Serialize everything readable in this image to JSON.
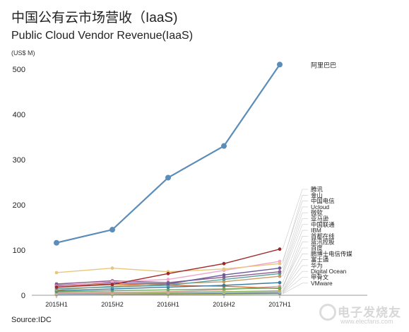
{
  "header": {
    "title_cn": "中国公有云市场营收（IaaS)",
    "title_en": "Public Cloud Vendor Revenue(IaaS)",
    "unit": "(US$ M)"
  },
  "footer": {
    "source": "Source:IDC"
  },
  "watermark": {
    "text_cn": "电子发烧友",
    "text_en": "www.elecfans.com"
  },
  "chart_data": {
    "type": "line",
    "title": "Public Cloud Vendor Revenue(IaaS)",
    "ylabel": "(US$ M)",
    "x": [
      "2015H1",
      "2015H2",
      "2016H1",
      "2016H2",
      "2017H1"
    ],
    "ylim": [
      0,
      520
    ],
    "yticks": [
      0,
      100,
      200,
      300,
      400,
      500
    ],
    "grid": false,
    "legend_placement": "right",
    "series": [
      {
        "name": "阿里巴巴",
        "color": "#5b8db8",
        "values": [
          116,
          145,
          260,
          330,
          510
        ]
      },
      {
        "name": "腾讯",
        "color": "#a02828",
        "values": [
          18,
          24,
          48,
          70,
          102
        ]
      },
      {
        "name": "金山",
        "color": "#e8c77c",
        "values": [
          50,
          60,
          52,
          58,
          70
        ]
      },
      {
        "name": "中国电信",
        "color": "#f0a8c8",
        "values": [
          20,
          30,
          35,
          55,
          75
        ]
      },
      {
        "name": "Ucloud",
        "color": "#6a5a9a",
        "values": [
          22,
          28,
          25,
          45,
          60
        ]
      },
      {
        "name": "微软",
        "color": "#8c5a8c",
        "values": [
          25,
          32,
          28,
          40,
          52
        ]
      },
      {
        "name": "亚马逊",
        "color": "#5aa0a0",
        "values": [
          15,
          18,
          22,
          35,
          48
        ]
      },
      {
        "name": "中国联通",
        "color": "#c89a60",
        "values": [
          12,
          20,
          25,
          30,
          42
        ]
      },
      {
        "name": "IBM",
        "color": "#3a7a9a",
        "values": [
          10,
          14,
          18,
          22,
          28
        ]
      },
      {
        "name": "首都在线",
        "color": "#6aa860",
        "values": [
          8,
          10,
          12,
          14,
          16
        ]
      },
      {
        "name": "蓝汛控股",
        "color": "#d07040",
        "values": [
          20,
          25,
          22,
          20,
          15
        ]
      },
      {
        "name": "百度",
        "color": "#e0a0a0",
        "values": [
          5,
          6,
          8,
          12,
          20
        ]
      },
      {
        "name": "鹏博士电信传媒",
        "color": "#a0c060",
        "values": [
          4,
          5,
          6,
          8,
          10
        ]
      },
      {
        "name": "富士通",
        "color": "#b0b0d0",
        "values": [
          6,
          7,
          7,
          8,
          8
        ]
      },
      {
        "name": "华为",
        "color": "#9ac0e0",
        "values": [
          3,
          4,
          5,
          6,
          7
        ]
      },
      {
        "name": "Digital Ocean",
        "color": "#7a7a7a",
        "values": [
          2,
          3,
          3,
          4,
          5
        ]
      },
      {
        "name": "甲骨文",
        "color": "#c0c040",
        "values": [
          1,
          2,
          2,
          3,
          4
        ]
      },
      {
        "name": "VMware",
        "color": "#8ab0c8",
        "values": [
          1,
          1,
          2,
          2,
          3
        ]
      }
    ]
  }
}
